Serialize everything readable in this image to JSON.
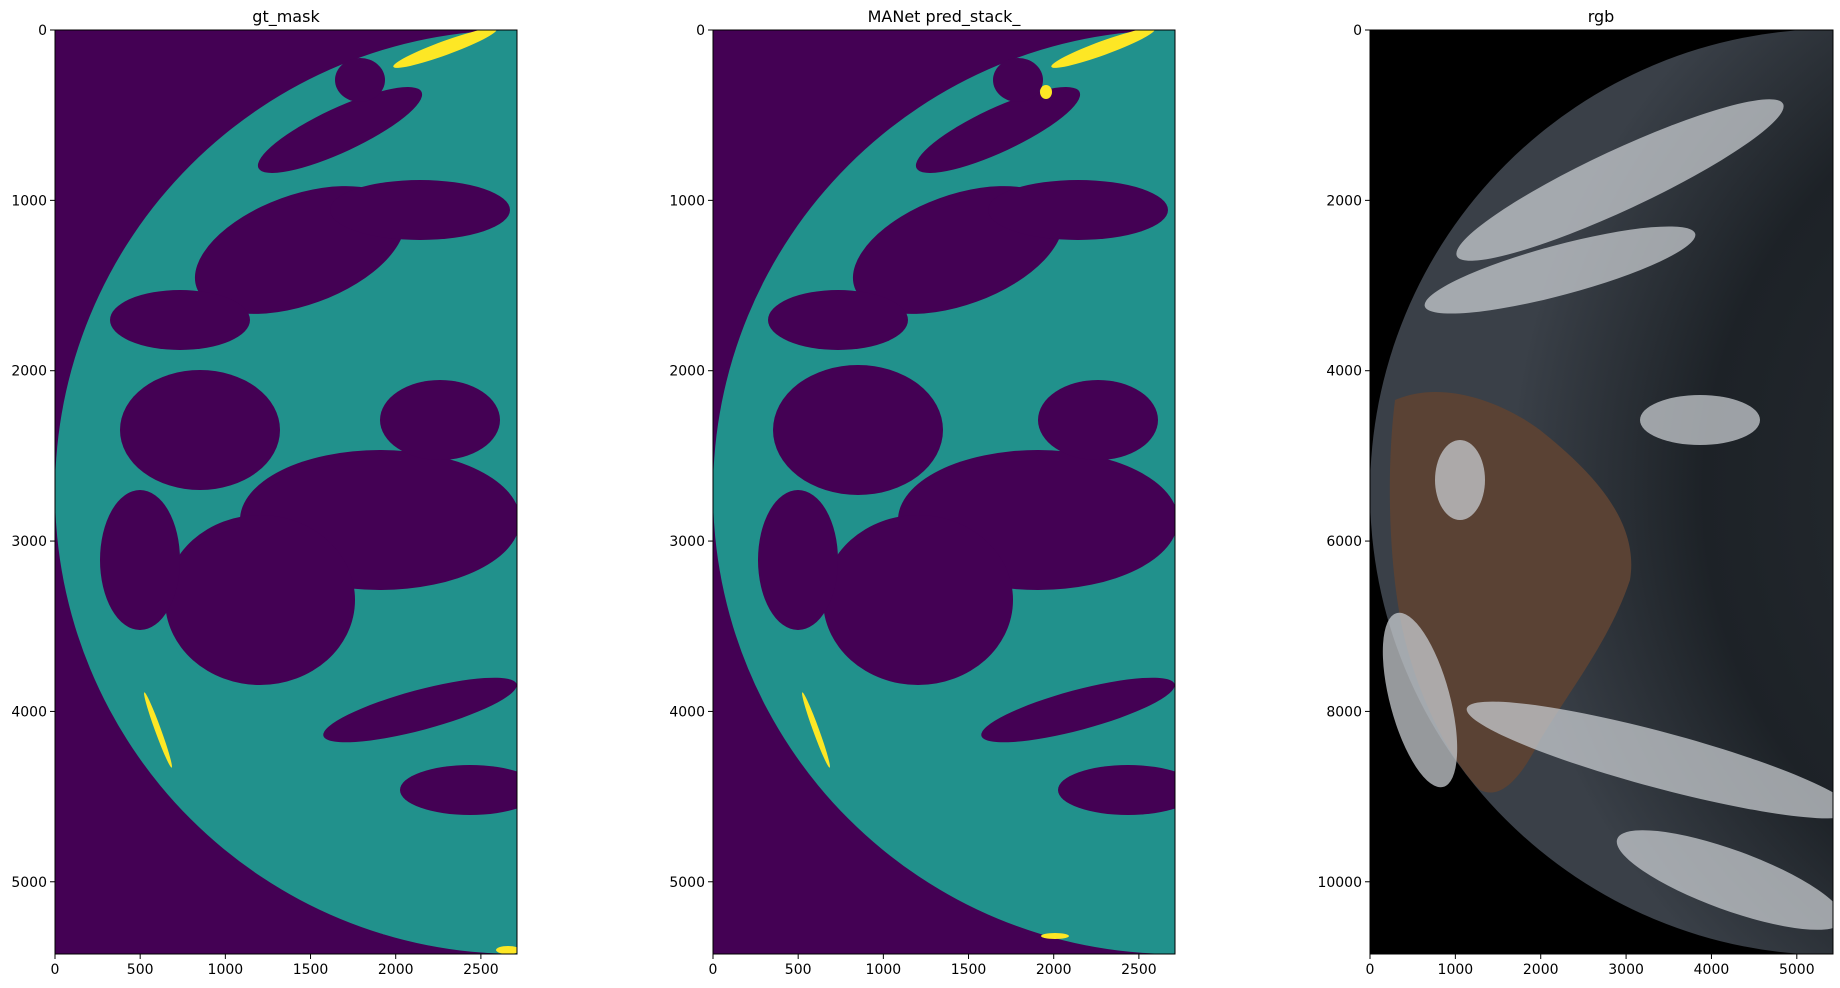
{
  "chart_data": [
    {
      "type": "heatmap",
      "title": "gt_mask",
      "x_ticks": [
        0,
        500,
        1000,
        1500,
        2000,
        2500
      ],
      "y_ticks": [
        0,
        1000,
        2000,
        3000,
        4000,
        5000
      ],
      "xlim": [
        0,
        2712
      ],
      "ylim": [
        5424,
        0
      ],
      "colormap": "viridis",
      "classes": [
        {
          "value": 0,
          "color": "#440154"
        },
        {
          "value": 1,
          "color": "#21918c"
        },
        {
          "value": 2,
          "color": "#fde725"
        }
      ]
    },
    {
      "type": "heatmap",
      "title": "MANet pred_stack_",
      "x_ticks": [
        0,
        500,
        1000,
        1500,
        2000,
        2500
      ],
      "y_ticks": [
        0,
        1000,
        2000,
        3000,
        4000,
        5000
      ],
      "xlim": [
        0,
        2712
      ],
      "ylim": [
        5424,
        0
      ],
      "colormap": "viridis",
      "classes": [
        {
          "value": 0,
          "color": "#440154"
        },
        {
          "value": 1,
          "color": "#21918c"
        },
        {
          "value": 2,
          "color": "#fde725"
        }
      ]
    },
    {
      "type": "heatmap",
      "title": "rgb",
      "x_ticks": [
        0,
        1000,
        2000,
        3000,
        4000,
        5000
      ],
      "y_ticks": [
        0,
        2000,
        4000,
        6000,
        8000,
        10000
      ],
      "xlim": [
        0,
        5424
      ],
      "ylim": [
        10848,
        0
      ],
      "colormap": "rgb image",
      "colors": {
        "space": "#000000",
        "cloud": "#c8ccd0",
        "land": "#5a4234",
        "ocean": "#1c2126"
      }
    }
  ]
}
